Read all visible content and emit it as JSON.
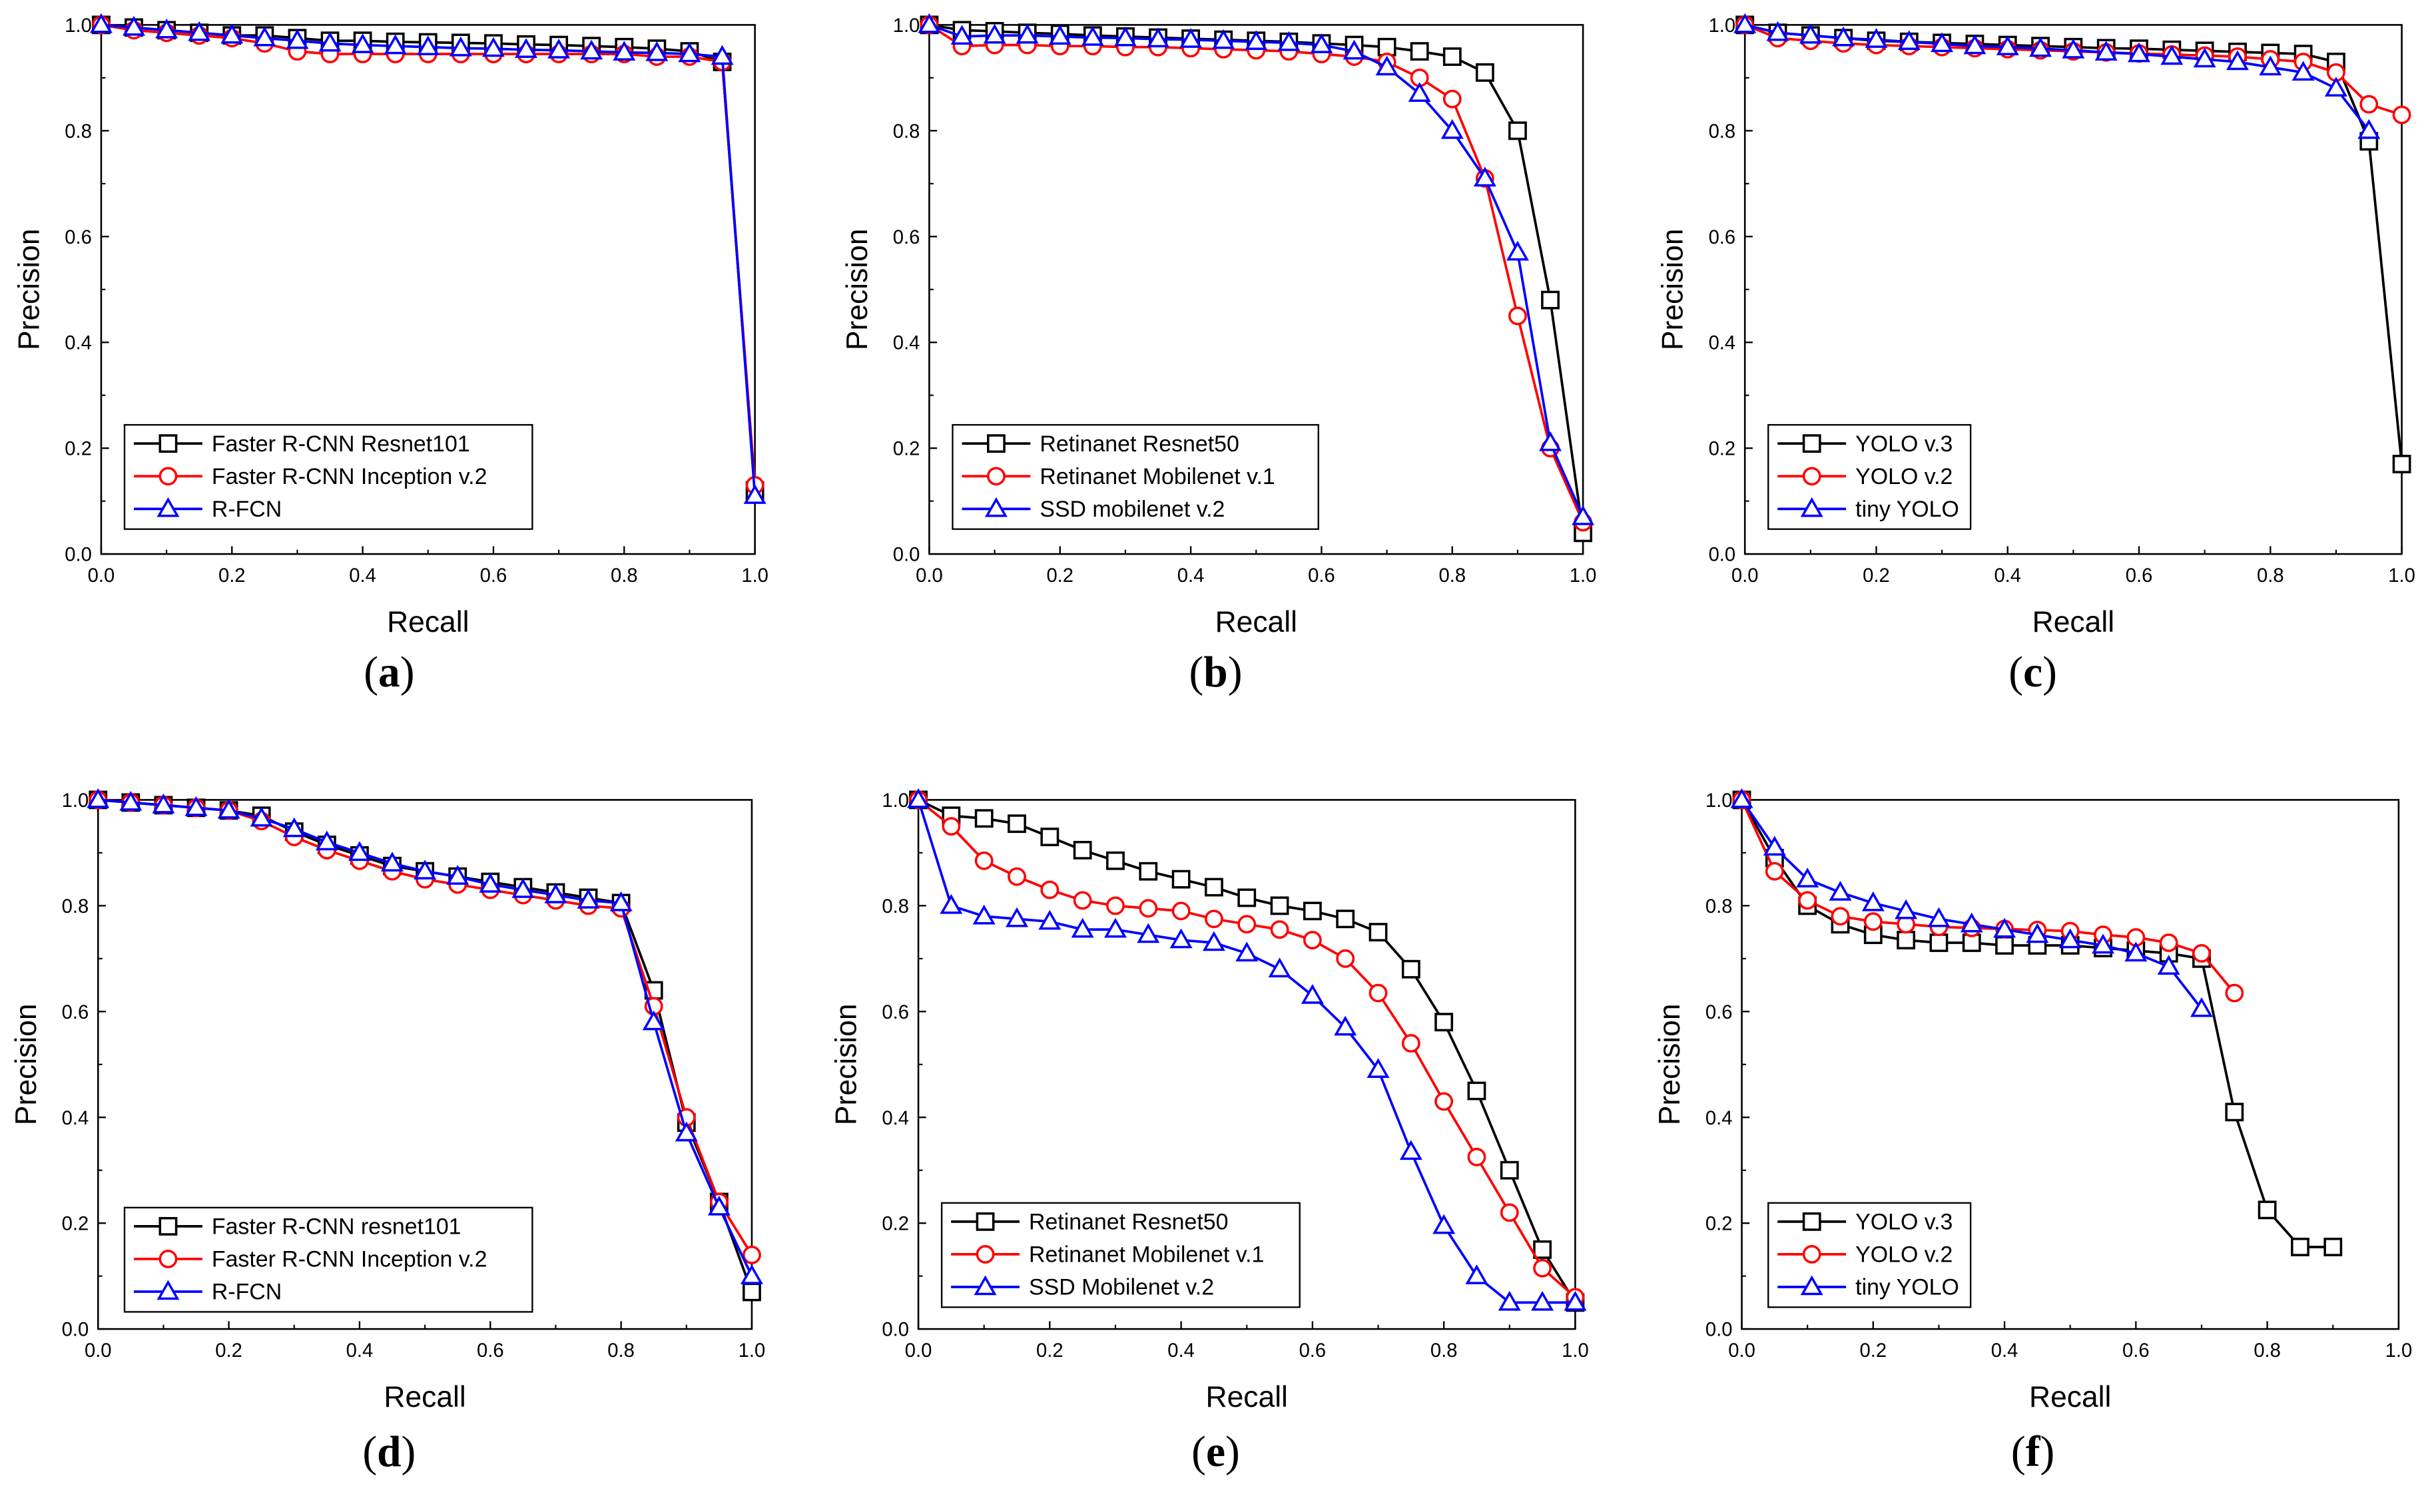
{
  "colors": {
    "black": "#000000",
    "red": "#ff0000",
    "blue": "#0000ff"
  },
  "axes": {
    "xlabel": "Recall",
    "ylabel": "Precision",
    "xticks": [
      "0.0",
      "0.2",
      "0.4",
      "0.6",
      "0.8",
      "1.0"
    ],
    "yticks": [
      "0.0",
      "0.2",
      "0.4",
      "0.6",
      "0.8",
      "1.0"
    ],
    "xlim": [
      0,
      1
    ],
    "ylim": [
      0,
      1
    ]
  },
  "chart_data": [
    {
      "panel": "(a)",
      "label_letter": "a",
      "type": "line",
      "legend": "bottom-left",
      "grid": false,
      "xlabel": "Recall",
      "ylabel": "Precision",
      "xlim": [
        0,
        1
      ],
      "ylim": [
        0,
        1
      ],
      "series": [
        {
          "name": "Faster R-CNN Resnet101",
          "color": "#000000",
          "marker": "square",
          "x": [
            0,
            0.05,
            0.1,
            0.15,
            0.2,
            0.25,
            0.3,
            0.35,
            0.4,
            0.45,
            0.5,
            0.55,
            0.6,
            0.65,
            0.7,
            0.75,
            0.8,
            0.85,
            0.9,
            0.95,
            1.0
          ],
          "y": [
            1.0,
            0.995,
            0.99,
            0.985,
            0.98,
            0.98,
            0.975,
            0.97,
            0.97,
            0.968,
            0.967,
            0.966,
            0.965,
            0.963,
            0.962,
            0.96,
            0.958,
            0.955,
            0.95,
            0.93,
            0.12
          ]
        },
        {
          "name": "Faster R-CNN Inception v.2",
          "color": "#ff0000",
          "marker": "circle",
          "x": [
            0,
            0.05,
            0.1,
            0.15,
            0.2,
            0.25,
            0.3,
            0.35,
            0.4,
            0.45,
            0.5,
            0.55,
            0.6,
            0.65,
            0.7,
            0.75,
            0.8,
            0.85,
            0.9,
            0.95,
            1.0
          ],
          "y": [
            1.0,
            0.99,
            0.985,
            0.98,
            0.975,
            0.965,
            0.95,
            0.945,
            0.945,
            0.945,
            0.945,
            0.945,
            0.945,
            0.945,
            0.945,
            0.945,
            0.945,
            0.94,
            0.94,
            0.93,
            0.13
          ]
        },
        {
          "name": "R-FCN",
          "color": "#0000ff",
          "marker": "triangle",
          "x": [
            0,
            0.05,
            0.1,
            0.15,
            0.2,
            0.25,
            0.3,
            0.35,
            0.4,
            0.45,
            0.5,
            0.55,
            0.6,
            0.65,
            0.7,
            0.75,
            0.8,
            0.85,
            0.9,
            0.95,
            1.0
          ],
          "y": [
            1.0,
            0.995,
            0.99,
            0.985,
            0.98,
            0.975,
            0.97,
            0.965,
            0.962,
            0.96,
            0.958,
            0.956,
            0.955,
            0.953,
            0.952,
            0.95,
            0.948,
            0.947,
            0.945,
            0.94,
            0.11
          ]
        }
      ]
    },
    {
      "panel": "(b)",
      "label_letter": "b",
      "type": "line",
      "legend": "bottom-left",
      "grid": false,
      "xlabel": "Recall",
      "ylabel": "Precision",
      "xlim": [
        0,
        1
      ],
      "ylim": [
        0,
        1
      ],
      "series": [
        {
          "name": "Retinanet Resnet50",
          "color": "#000000",
          "marker": "square",
          "x": [
            0,
            0.05,
            0.1,
            0.15,
            0.2,
            0.25,
            0.3,
            0.35,
            0.4,
            0.45,
            0.5,
            0.55,
            0.6,
            0.65,
            0.7,
            0.75,
            0.8,
            0.85,
            0.9,
            0.95,
            1.0
          ],
          "y": [
            1.0,
            0.99,
            0.988,
            0.985,
            0.983,
            0.98,
            0.978,
            0.976,
            0.974,
            0.972,
            0.97,
            0.968,
            0.965,
            0.962,
            0.958,
            0.95,
            0.94,
            0.91,
            0.8,
            0.48,
            0.04
          ]
        },
        {
          "name": "Retinanet Mobilenet v.1",
          "color": "#ff0000",
          "marker": "circle",
          "x": [
            0,
            0.05,
            0.1,
            0.15,
            0.2,
            0.25,
            0.3,
            0.35,
            0.4,
            0.45,
            0.5,
            0.55,
            0.6,
            0.65,
            0.7,
            0.75,
            0.8,
            0.85,
            0.9,
            0.95,
            1.0
          ],
          "y": [
            1.0,
            0.96,
            0.962,
            0.962,
            0.96,
            0.96,
            0.958,
            0.958,
            0.956,
            0.954,
            0.952,
            0.95,
            0.945,
            0.94,
            0.93,
            0.9,
            0.86,
            0.71,
            0.45,
            0.2,
            0.06
          ]
        },
        {
          "name": "SSD mobilenet v.2",
          "color": "#0000ff",
          "marker": "triangle",
          "x": [
            0,
            0.05,
            0.1,
            0.15,
            0.2,
            0.25,
            0.3,
            0.35,
            0.4,
            0.45,
            0.5,
            0.55,
            0.6,
            0.65,
            0.7,
            0.75,
            0.8,
            0.85,
            0.9,
            0.95,
            1.0
          ],
          "y": [
            1.0,
            0.978,
            0.98,
            0.98,
            0.978,
            0.976,
            0.975,
            0.973,
            0.972,
            0.97,
            0.968,
            0.966,
            0.962,
            0.95,
            0.92,
            0.87,
            0.8,
            0.71,
            0.57,
            0.21,
            0.07
          ]
        }
      ]
    },
    {
      "panel": "(c)",
      "label_letter": "c",
      "type": "line",
      "legend": "bottom-left",
      "grid": false,
      "xlabel": "Recall",
      "ylabel": "Precision",
      "xlim": [
        0,
        1
      ],
      "ylim": [
        0,
        1
      ],
      "series": [
        {
          "name": "YOLO v.3",
          "color": "#000000",
          "marker": "square",
          "x": [
            0,
            0.05,
            0.1,
            0.15,
            0.2,
            0.25,
            0.3,
            0.35,
            0.4,
            0.45,
            0.5,
            0.55,
            0.6,
            0.65,
            0.7,
            0.75,
            0.8,
            0.85,
            0.9,
            0.95,
            1.0
          ],
          "y": [
            1.0,
            0.985,
            0.98,
            0.975,
            0.97,
            0.968,
            0.966,
            0.964,
            0.962,
            0.96,
            0.958,
            0.956,
            0.955,
            0.953,
            0.951,
            0.949,
            0.947,
            0.945,
            0.93,
            0.78,
            0.17
          ]
        },
        {
          "name": "YOLO v.2",
          "color": "#ff0000",
          "marker": "circle",
          "x": [
            0,
            0.05,
            0.1,
            0.15,
            0.2,
            0.25,
            0.3,
            0.35,
            0.4,
            0.45,
            0.5,
            0.55,
            0.6,
            0.65,
            0.7,
            0.75,
            0.8,
            0.85,
            0.9,
            0.95,
            1.0
          ],
          "y": [
            1.0,
            0.975,
            0.97,
            0.965,
            0.962,
            0.96,
            0.958,
            0.956,
            0.954,
            0.952,
            0.95,
            0.948,
            0.946,
            0.944,
            0.942,
            0.94,
            0.935,
            0.93,
            0.91,
            0.85,
            0.83
          ]
        },
        {
          "name": "tiny YOLO",
          "color": "#0000ff",
          "marker": "triangle",
          "x": [
            0,
            0.05,
            0.1,
            0.15,
            0.2,
            0.25,
            0.3,
            0.35,
            0.4,
            0.45,
            0.5,
            0.55,
            0.6,
            0.65,
            0.7,
            0.75,
            0.8,
            0.85,
            0.9,
            0.95
          ],
          "y": [
            1.0,
            0.985,
            0.98,
            0.975,
            0.972,
            0.968,
            0.964,
            0.96,
            0.958,
            0.955,
            0.952,
            0.948,
            0.945,
            0.94,
            0.935,
            0.93,
            0.92,
            0.91,
            0.88,
            0.8
          ]
        }
      ]
    },
    {
      "panel": "(d)",
      "label_letter": "d",
      "type": "line",
      "legend": "bottom-left",
      "grid": false,
      "xlabel": "Recall",
      "ylabel": "Precision",
      "xlim": [
        0,
        1
      ],
      "ylim": [
        0,
        1
      ],
      "series": [
        {
          "name": "Faster R-CNN resnet101",
          "color": "#000000",
          "marker": "square",
          "x": [
            0,
            0.05,
            0.1,
            0.15,
            0.2,
            0.25,
            0.3,
            0.35,
            0.4,
            0.45,
            0.5,
            0.55,
            0.6,
            0.65,
            0.7,
            0.75,
            0.8,
            0.85,
            0.9,
            0.95,
            1.0
          ],
          "y": [
            1.0,
            0.995,
            0.99,
            0.985,
            0.98,
            0.97,
            0.94,
            0.915,
            0.895,
            0.875,
            0.865,
            0.855,
            0.845,
            0.835,
            0.825,
            0.815,
            0.805,
            0.64,
            0.39,
            0.24,
            0.07
          ]
        },
        {
          "name": "Faster R-CNN Inception v.2",
          "color": "#ff0000",
          "marker": "circle",
          "x": [
            0,
            0.05,
            0.1,
            0.15,
            0.2,
            0.25,
            0.3,
            0.35,
            0.4,
            0.45,
            0.5,
            0.55,
            0.6,
            0.65,
            0.7,
            0.75,
            0.8,
            0.85,
            0.9,
            0.95,
            1.0
          ],
          "y": [
            1.0,
            0.995,
            0.99,
            0.985,
            0.98,
            0.96,
            0.93,
            0.905,
            0.885,
            0.865,
            0.85,
            0.84,
            0.83,
            0.82,
            0.81,
            0.8,
            0.795,
            0.61,
            0.4,
            0.24,
            0.14
          ]
        },
        {
          "name": "R-FCN",
          "color": "#0000ff",
          "marker": "triangle",
          "x": [
            0,
            0.05,
            0.1,
            0.15,
            0.2,
            0.25,
            0.3,
            0.35,
            0.4,
            0.45,
            0.5,
            0.55,
            0.6,
            0.65,
            0.7,
            0.75,
            0.8,
            0.85,
            0.9,
            0.95,
            1.0
          ],
          "y": [
            1.0,
            0.995,
            0.99,
            0.985,
            0.98,
            0.965,
            0.945,
            0.92,
            0.9,
            0.88,
            0.865,
            0.855,
            0.84,
            0.83,
            0.82,
            0.81,
            0.805,
            0.58,
            0.37,
            0.23,
            0.1
          ]
        }
      ]
    },
    {
      "panel": "(e)",
      "label_letter": "e",
      "type": "line",
      "legend": "bottom-left",
      "grid": false,
      "xlabel": "Recall",
      "ylabel": "Precision",
      "xlim": [
        0,
        1
      ],
      "ylim": [
        0,
        1
      ],
      "series": [
        {
          "name": "Retinanet Resnet50",
          "color": "#000000",
          "marker": "square",
          "x": [
            0,
            0.05,
            0.1,
            0.15,
            0.2,
            0.25,
            0.3,
            0.35,
            0.4,
            0.45,
            0.5,
            0.55,
            0.6,
            0.65,
            0.7,
            0.75,
            0.8,
            0.85,
            0.9,
            0.95,
            1.0
          ],
          "y": [
            1.0,
            0.97,
            0.965,
            0.955,
            0.93,
            0.905,
            0.885,
            0.865,
            0.85,
            0.835,
            0.815,
            0.8,
            0.79,
            0.775,
            0.75,
            0.68,
            0.58,
            0.45,
            0.3,
            0.15,
            0.05
          ]
        },
        {
          "name": "Retinanet Mobilenet v.1",
          "color": "#ff0000",
          "marker": "circle",
          "x": [
            0,
            0.05,
            0.1,
            0.15,
            0.2,
            0.25,
            0.3,
            0.35,
            0.4,
            0.45,
            0.5,
            0.55,
            0.6,
            0.65,
            0.7,
            0.75,
            0.8,
            0.85,
            0.9,
            0.95,
            1.0
          ],
          "y": [
            1.0,
            0.95,
            0.885,
            0.855,
            0.83,
            0.81,
            0.8,
            0.795,
            0.79,
            0.775,
            0.765,
            0.755,
            0.735,
            0.7,
            0.635,
            0.54,
            0.43,
            0.325,
            0.22,
            0.115,
            0.06
          ]
        },
        {
          "name": "SSD Mobilenet v.2",
          "color": "#0000ff",
          "marker": "triangle",
          "x": [
            0,
            0.05,
            0.1,
            0.15,
            0.2,
            0.25,
            0.3,
            0.35,
            0.4,
            0.45,
            0.5,
            0.55,
            0.6,
            0.65,
            0.7,
            0.75,
            0.8,
            0.85,
            0.9,
            0.95,
            1.0
          ],
          "y": [
            1.0,
            0.8,
            0.78,
            0.775,
            0.77,
            0.755,
            0.755,
            0.745,
            0.735,
            0.73,
            0.71,
            0.68,
            0.63,
            0.57,
            0.49,
            0.335,
            0.195,
            0.1,
            0.05,
            0.05,
            0.05
          ]
        }
      ]
    },
    {
      "panel": "(f)",
      "label_letter": "f",
      "type": "line",
      "legend": "bottom-left",
      "grid": false,
      "xlabel": "Recall",
      "ylabel": "Precision",
      "xlim": [
        0,
        1
      ],
      "ylim": [
        0,
        1
      ],
      "series": [
        {
          "name": "YOLO v.3",
          "color": "#000000",
          "marker": "square",
          "x": [
            0,
            0.05,
            0.1,
            0.15,
            0.2,
            0.25,
            0.3,
            0.35,
            0.4,
            0.45,
            0.5,
            0.55,
            0.6,
            0.65,
            0.7,
            0.75,
            0.8,
            0.85,
            0.9
          ],
          "y": [
            1.0,
            0.89,
            0.8,
            0.765,
            0.745,
            0.735,
            0.73,
            0.73,
            0.725,
            0.725,
            0.725,
            0.72,
            0.715,
            0.71,
            0.7,
            0.41,
            0.225,
            0.155,
            0.155
          ]
        },
        {
          "name": "YOLO v.2",
          "color": "#ff0000",
          "marker": "circle",
          "x": [
            0,
            0.05,
            0.1,
            0.15,
            0.2,
            0.25,
            0.3,
            0.35,
            0.4,
            0.45,
            0.5,
            0.55,
            0.6,
            0.65,
            0.7,
            0.75
          ],
          "y": [
            1.0,
            0.865,
            0.81,
            0.78,
            0.77,
            0.765,
            0.76,
            0.758,
            0.756,
            0.754,
            0.752,
            0.745,
            0.74,
            0.73,
            0.71,
            0.635
          ]
        },
        {
          "name": "tiny YOLO",
          "color": "#0000ff",
          "marker": "triangle",
          "x": [
            0,
            0.05,
            0.1,
            0.15,
            0.2,
            0.25,
            0.3,
            0.35,
            0.4,
            0.45,
            0.5,
            0.55,
            0.6,
            0.65,
            0.7
          ],
          "y": [
            1.0,
            0.91,
            0.85,
            0.825,
            0.805,
            0.79,
            0.775,
            0.765,
            0.755,
            0.745,
            0.735,
            0.725,
            0.71,
            0.685,
            0.605
          ]
        }
      ]
    }
  ]
}
